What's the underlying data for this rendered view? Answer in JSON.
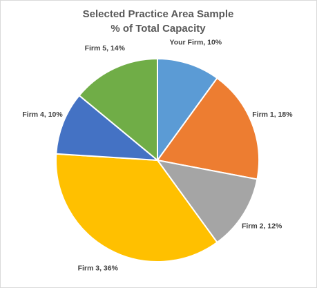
{
  "chart_data": {
    "type": "pie",
    "title": [
      "Selected Practice Area Sample",
      "% of Total Capacity"
    ],
    "values": [
      10,
      18,
      12,
      36,
      10,
      14
    ],
    "value_labels": [
      "Your Firm, 10%",
      "Firm 1, 18%",
      "Firm 2, 12%",
      "Firm 3, 36%",
      "Firm 4, 10%",
      "Firm 5, 14%"
    ],
    "colors": [
      "#5b9bd5",
      "#ed7d31",
      "#a5a5a5",
      "#ffc000",
      "#4472c4",
      "#70ad47"
    ]
  }
}
